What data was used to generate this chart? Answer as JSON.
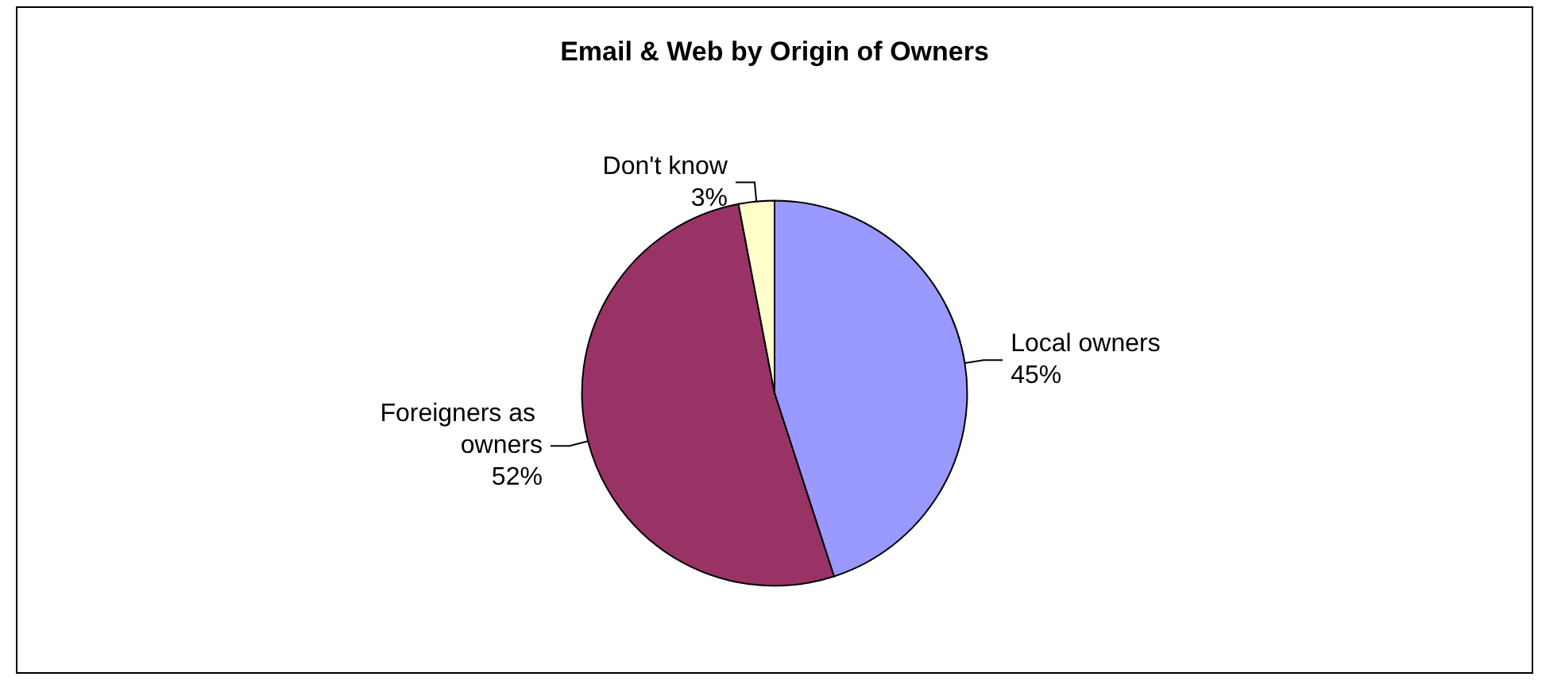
{
  "chart_data": {
    "type": "pie",
    "title": "Email & Web by Origin of Owners",
    "categories": [
      "Local owners",
      "Foreigners as owners",
      "Don't know"
    ],
    "values": [
      45,
      52,
      3
    ],
    "value_labels": [
      "45%",
      "52%",
      "3%"
    ],
    "colors": [
      "#9999ff",
      "#993366",
      "#ffffcc"
    ],
    "legend": false
  }
}
